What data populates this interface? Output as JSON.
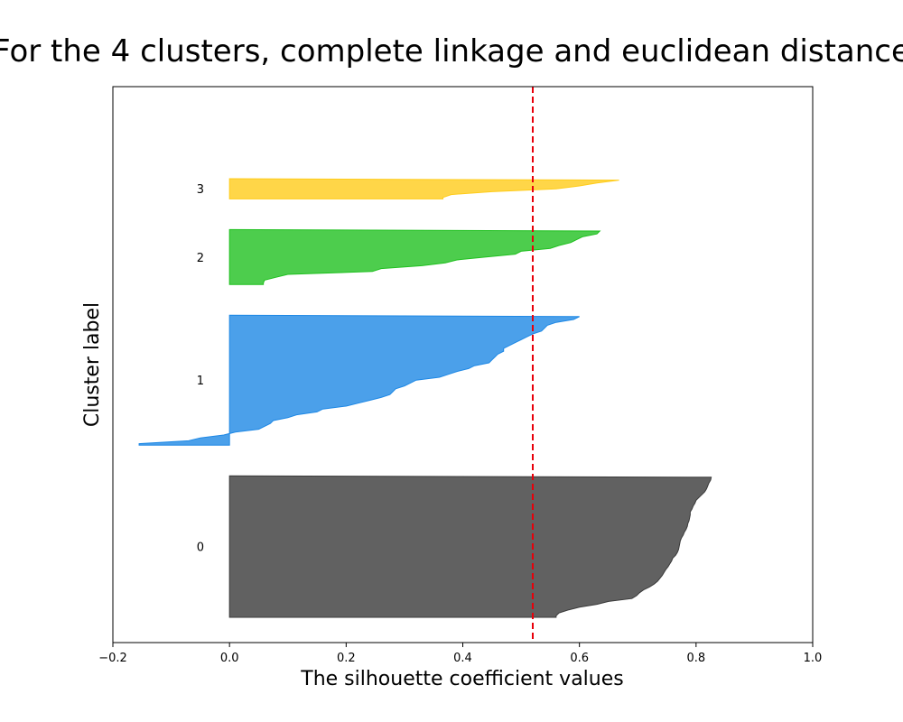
{
  "chart_data": {
    "type": "area",
    "title": "For the 4 clusters, complete linkage and euclidean distance",
    "xlabel": "The silhouette coefficient values",
    "ylabel": "Cluster label",
    "xlim": [
      -0.2,
      1.0
    ],
    "xticks": [
      "−0.2",
      "0.0",
      "0.2",
      "0.4",
      "0.6",
      "0.8",
      "1.0"
    ],
    "xtick_values": [
      -0.2,
      0.0,
      0.2,
      0.4,
      0.6,
      0.8,
      1.0
    ],
    "yticks": false,
    "grid": false,
    "average_silhouette": 0.52,
    "average_line_color": "#e8000b",
    "clusters": [
      {
        "label": "0",
        "color": "#3a3a3a",
        "values": [
          0.826,
          0.825,
          0.822,
          0.82,
          0.818,
          0.815,
          0.81,
          0.805,
          0.8,
          0.798,
          0.795,
          0.793,
          0.79,
          0.79,
          0.789,
          0.788,
          0.786,
          0.785,
          0.783,
          0.78,
          0.778,
          0.775,
          0.773,
          0.772,
          0.771,
          0.77,
          0.768,
          0.765,
          0.76,
          0.758,
          0.755,
          0.752,
          0.748,
          0.745,
          0.742,
          0.738,
          0.734,
          0.728,
          0.72,
          0.71,
          0.703,
          0.698,
          0.69,
          0.65,
          0.63,
          0.6,
          0.58,
          0.565,
          0.56
        ]
      },
      {
        "label": "1",
        "color": "#1e88e5",
        "values": [
          0.6,
          0.59,
          0.56,
          0.545,
          0.54,
          0.535,
          0.52,
          0.51,
          0.5,
          0.49,
          0.48,
          0.47,
          0.47,
          0.46,
          0.455,
          0.45,
          0.445,
          0.42,
          0.41,
          0.39,
          0.375,
          0.36,
          0.32,
          0.31,
          0.3,
          0.285,
          0.28,
          0.275,
          0.26,
          0.24,
          0.22,
          0.2,
          0.16,
          0.15,
          0.115,
          0.1,
          0.075,
          0.07,
          0.06,
          0.05,
          0.01,
          -0.01,
          -0.05,
          -0.07,
          -0.155
        ]
      },
      {
        "label": "2",
        "color": "#20c020",
        "values": [
          0.635,
          0.63,
          0.605,
          0.595,
          0.585,
          0.565,
          0.55,
          0.5,
          0.49,
          0.44,
          0.39,
          0.37,
          0.33,
          0.26,
          0.245,
          0.1,
          0.08,
          0.06,
          0.058
        ]
      },
      {
        "label": "3",
        "color": "#ffcc1a",
        "values": [
          0.668,
          0.63,
          0.6,
          0.56,
          0.45,
          0.38,
          0.366
        ]
      }
    ]
  }
}
